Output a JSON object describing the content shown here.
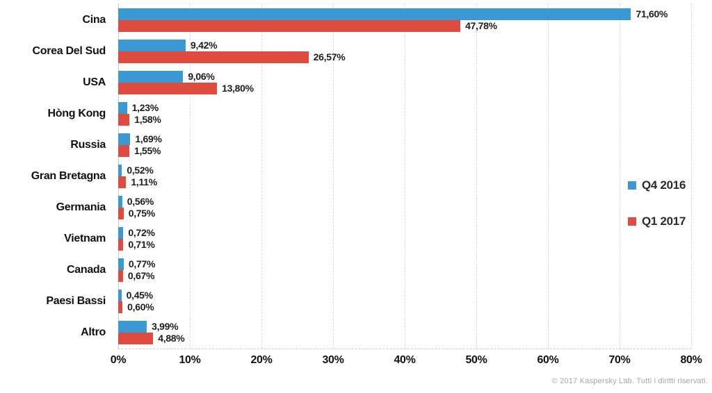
{
  "chart_data": {
    "type": "bar",
    "orientation": "horizontal",
    "title": "",
    "xlabel": "",
    "ylabel": "",
    "xlim": [
      0,
      80
    ],
    "x_ticks": [
      "0%",
      "10%",
      "20%",
      "30%",
      "40%",
      "50%",
      "60%",
      "70%",
      "80%"
    ],
    "grid": "vertical-dashed",
    "legend_position": "right-inside",
    "categories": [
      "Cina",
      "Corea Del Sud",
      "USA",
      "Hòng Kong",
      "Russia",
      "Gran Bretagna",
      "Germania",
      "Vietnam",
      "Canada",
      "Paesi Bassi",
      "Altro"
    ],
    "series": [
      {
        "name": "Q4 2016",
        "color": "#3A98D3",
        "values": [
          71.6,
          9.42,
          9.06,
          1.23,
          1.69,
          0.52,
          0.56,
          0.72,
          0.77,
          0.45,
          3.99
        ],
        "value_labels": [
          "71,60%",
          "9,42%",
          "9,06%",
          "1,23%",
          "1,69%",
          "0,52%",
          "0,56%",
          "0,72%",
          "0,77%",
          "0,45%",
          "3,99%"
        ]
      },
      {
        "name": "Q1 2017",
        "color": "#E04B40",
        "values": [
          47.78,
          26.57,
          13.8,
          1.58,
          1.55,
          1.11,
          0.75,
          0.71,
          0.67,
          0.6,
          4.88
        ],
        "value_labels": [
          "47,78%",
          "26,57%",
          "13,80%",
          "1,58%",
          "1,55%",
          "1,11%",
          "0,75%",
          "0,71%",
          "0,67%",
          "0,60%",
          "4,88%"
        ]
      }
    ]
  },
  "colors": {
    "grid": "#d9d9d9",
    "axis": "#c9c9c9",
    "text": "#111111",
    "footer_text": "#a6a6a6"
  },
  "footer": {
    "copyright": "© 2017 Kaspersky Lab. Tutti i diritti riservati."
  }
}
